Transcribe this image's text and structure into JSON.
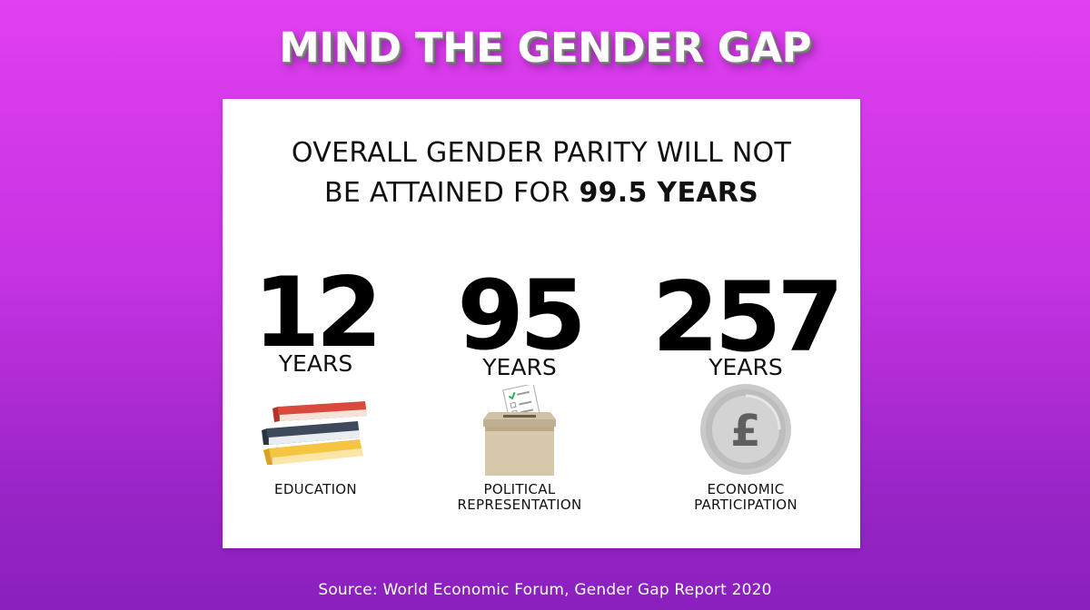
{
  "title": "MIND THE GENDER GAP",
  "headline": {
    "line1": "OVERALL GENDER PARITY WILL NOT",
    "line2_prefix": "BE ATTAINED FOR ",
    "line2_emphasis": "99.5 YEARS"
  },
  "stats": [
    {
      "value": "12",
      "unit": "YEARS",
      "label_lines": [
        "EDUCATION"
      ],
      "icon": "books-icon"
    },
    {
      "value": "95",
      "unit": "YEARS",
      "label_lines": [
        "POLITICAL",
        "REPRESENTATION"
      ],
      "icon": "ballot-box-icon"
    },
    {
      "value": "257",
      "unit": "YEARS",
      "label_lines": [
        "ECONOMIC",
        "PARTICIPATION"
      ],
      "icon": "pound-coin-icon",
      "icon_symbol": "£"
    }
  ],
  "source": "Source: World Economic Forum, Gender Gap Report 2020",
  "colors": {
    "background_top": "#e13ff0",
    "background_bottom": "#8a20bd",
    "card": "#ffffff",
    "text": "#111111"
  }
}
